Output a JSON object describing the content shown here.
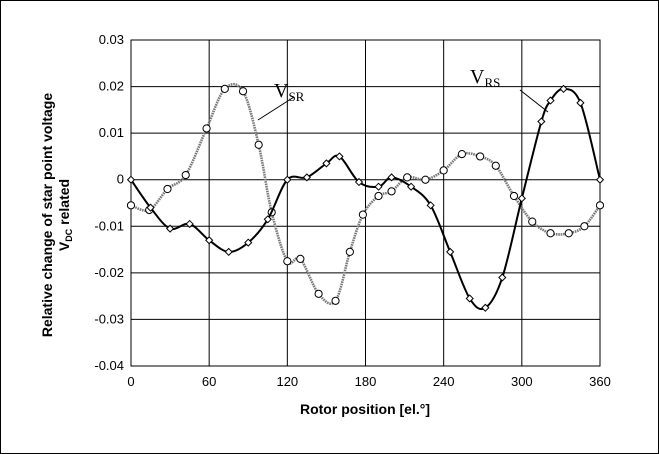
{
  "chart_data": {
    "type": "line",
    "xlabel": "Rotor position [el.°]",
    "ylabel_line1": "Relative change of star point voltage",
    "ylabel_line2_main": "V",
    "ylabel_line2_sub": "DC",
    "ylabel_line2_rest": " related",
    "xlim": [
      0,
      360
    ],
    "ylim": [
      -0.04,
      0.03
    ],
    "x_ticks": [
      0,
      60,
      120,
      180,
      240,
      300,
      360
    ],
    "y_ticks": [
      -0.04,
      -0.03,
      -0.02,
      -0.01,
      0,
      0.01,
      0.02,
      0.03
    ],
    "y_tick_labels": [
      "-0.04",
      "-0.03",
      "-0.02",
      "-0.01",
      "0",
      "0.01",
      "0.02",
      "0.03"
    ],
    "grid": true,
    "series": [
      {
        "name": "V_RS",
        "label_main": "V",
        "label_sub": "RS",
        "color": "#000000",
        "marker": "diamond",
        "line_style": "solid",
        "x": [
          0,
          15,
          30,
          45,
          60,
          75,
          90,
          105,
          120,
          135,
          150,
          160,
          175,
          190,
          200,
          215,
          230,
          245,
          260,
          272,
          285,
          300,
          315,
          322,
          332,
          345,
          360
        ],
        "y": [
          0.0,
          -0.006,
          -0.0105,
          -0.0095,
          -0.013,
          -0.0155,
          -0.0135,
          -0.0085,
          0.0,
          0.0005,
          0.0035,
          0.005,
          -0.0005,
          -0.0015,
          0.0005,
          -0.0015,
          -0.0055,
          -0.0155,
          -0.0255,
          -0.0275,
          -0.021,
          -0.004,
          0.0125,
          0.017,
          0.0195,
          0.0165,
          0.0
        ]
      },
      {
        "name": "V_SR",
        "label_main": "V",
        "label_sub": "SR",
        "color": "#7a7a7a",
        "marker": "circle",
        "line_style": "dotted",
        "x": [
          0,
          14,
          28,
          42,
          58,
          72,
          86,
          98,
          108,
          120,
          130,
          144,
          157,
          168,
          178,
          190,
          200,
          212,
          226,
          240,
          254,
          268,
          280,
          294,
          308,
          322,
          336,
          348,
          360
        ],
        "y": [
          -0.0055,
          -0.0065,
          -0.002,
          0.001,
          0.011,
          0.0195,
          0.019,
          0.0075,
          -0.007,
          -0.0175,
          -0.017,
          -0.0245,
          -0.026,
          -0.0155,
          -0.0075,
          -0.0035,
          -0.0025,
          0.0005,
          0.0,
          0.002,
          0.0055,
          0.005,
          0.003,
          -0.0035,
          -0.009,
          -0.0115,
          -0.0115,
          -0.01,
          -0.0055
        ]
      }
    ]
  }
}
